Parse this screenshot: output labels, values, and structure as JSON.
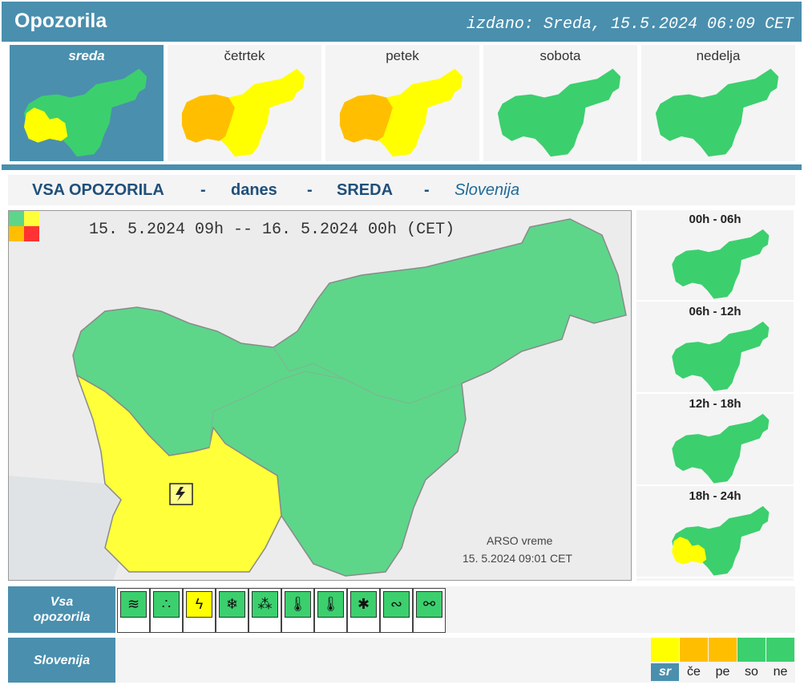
{
  "header": {
    "title": "Opozorila",
    "issued": "izdano: Sreda, 15.5.2024 06:09 CET"
  },
  "days": [
    {
      "label": "sreda",
      "active": true,
      "map": "sreda"
    },
    {
      "label": "četrtek",
      "active": false,
      "map": "cetrtek"
    },
    {
      "label": "petek",
      "active": false,
      "map": "petek"
    },
    {
      "label": "sobota",
      "active": false,
      "map": "green"
    },
    {
      "label": "nedelja",
      "active": false,
      "map": "green"
    }
  ],
  "filter": {
    "all": "VSA OPOZORILA",
    "dash1": "-",
    "today": "danes",
    "dash2": "-",
    "day": "SREDA",
    "dash3": "-",
    "region": "Slovenija"
  },
  "map": {
    "range": "15. 5.2024  09h  --  16. 5.2024  00h   (CET)",
    "credit_line1": "ARSO vreme",
    "credit_line2": "15. 5.2024  09:01 CET",
    "warning_icon": "thunderstorm-icon"
  },
  "periods": [
    {
      "label": "00h - 06h"
    },
    {
      "label": "06h - 12h"
    },
    {
      "label": "12h - 18h"
    },
    {
      "label": "18h - 24h"
    }
  ],
  "rows": {
    "all_label_1": "Vsa",
    "all_label_2": "opozorila",
    "region_label": "Slovenija"
  },
  "warning_types": [
    {
      "icon": "wind-icon",
      "glyph": "≋",
      "color": "#3ccf6e"
    },
    {
      "icon": "rain-icon",
      "glyph": "∴",
      "color": "#3ccf6e"
    },
    {
      "icon": "thunderstorm-icon",
      "glyph": "ϟ",
      "color": "#ffff00"
    },
    {
      "icon": "snow-icon",
      "glyph": "❄",
      "color": "#3ccf6e"
    },
    {
      "icon": "snow-rain-icon",
      "glyph": "⁂",
      "color": "#3ccf6e"
    },
    {
      "icon": "high-temperature-icon",
      "glyph": "🌡",
      "color": "#3ccf6e"
    },
    {
      "icon": "low-temperature-icon",
      "glyph": "🌡",
      "color": "#3ccf6e"
    },
    {
      "icon": "ice-icon",
      "glyph": "✱",
      "color": "#3ccf6e"
    },
    {
      "icon": "fog-icon",
      "glyph": "∾",
      "color": "#3ccf6e"
    },
    {
      "icon": "forest-fire-icon",
      "glyph": "⚯",
      "color": "#3ccf6e"
    }
  ],
  "days5": [
    {
      "label": "sr",
      "color": "#ffff00",
      "selected": true
    },
    {
      "label": "če",
      "color": "#ffbf00",
      "selected": false
    },
    {
      "label": "pe",
      "color": "#ffbf00",
      "selected": false
    },
    {
      "label": "so",
      "color": "#3ccf6e",
      "selected": false
    },
    {
      "label": "ne",
      "color": "#3ccf6e",
      "selected": false
    }
  ],
  "colors": {
    "green": "#3ccf6e",
    "yellow": "#ffff00",
    "orange": "#ffbf00",
    "red": "#ff3333",
    "accent": "#4a8fae"
  }
}
